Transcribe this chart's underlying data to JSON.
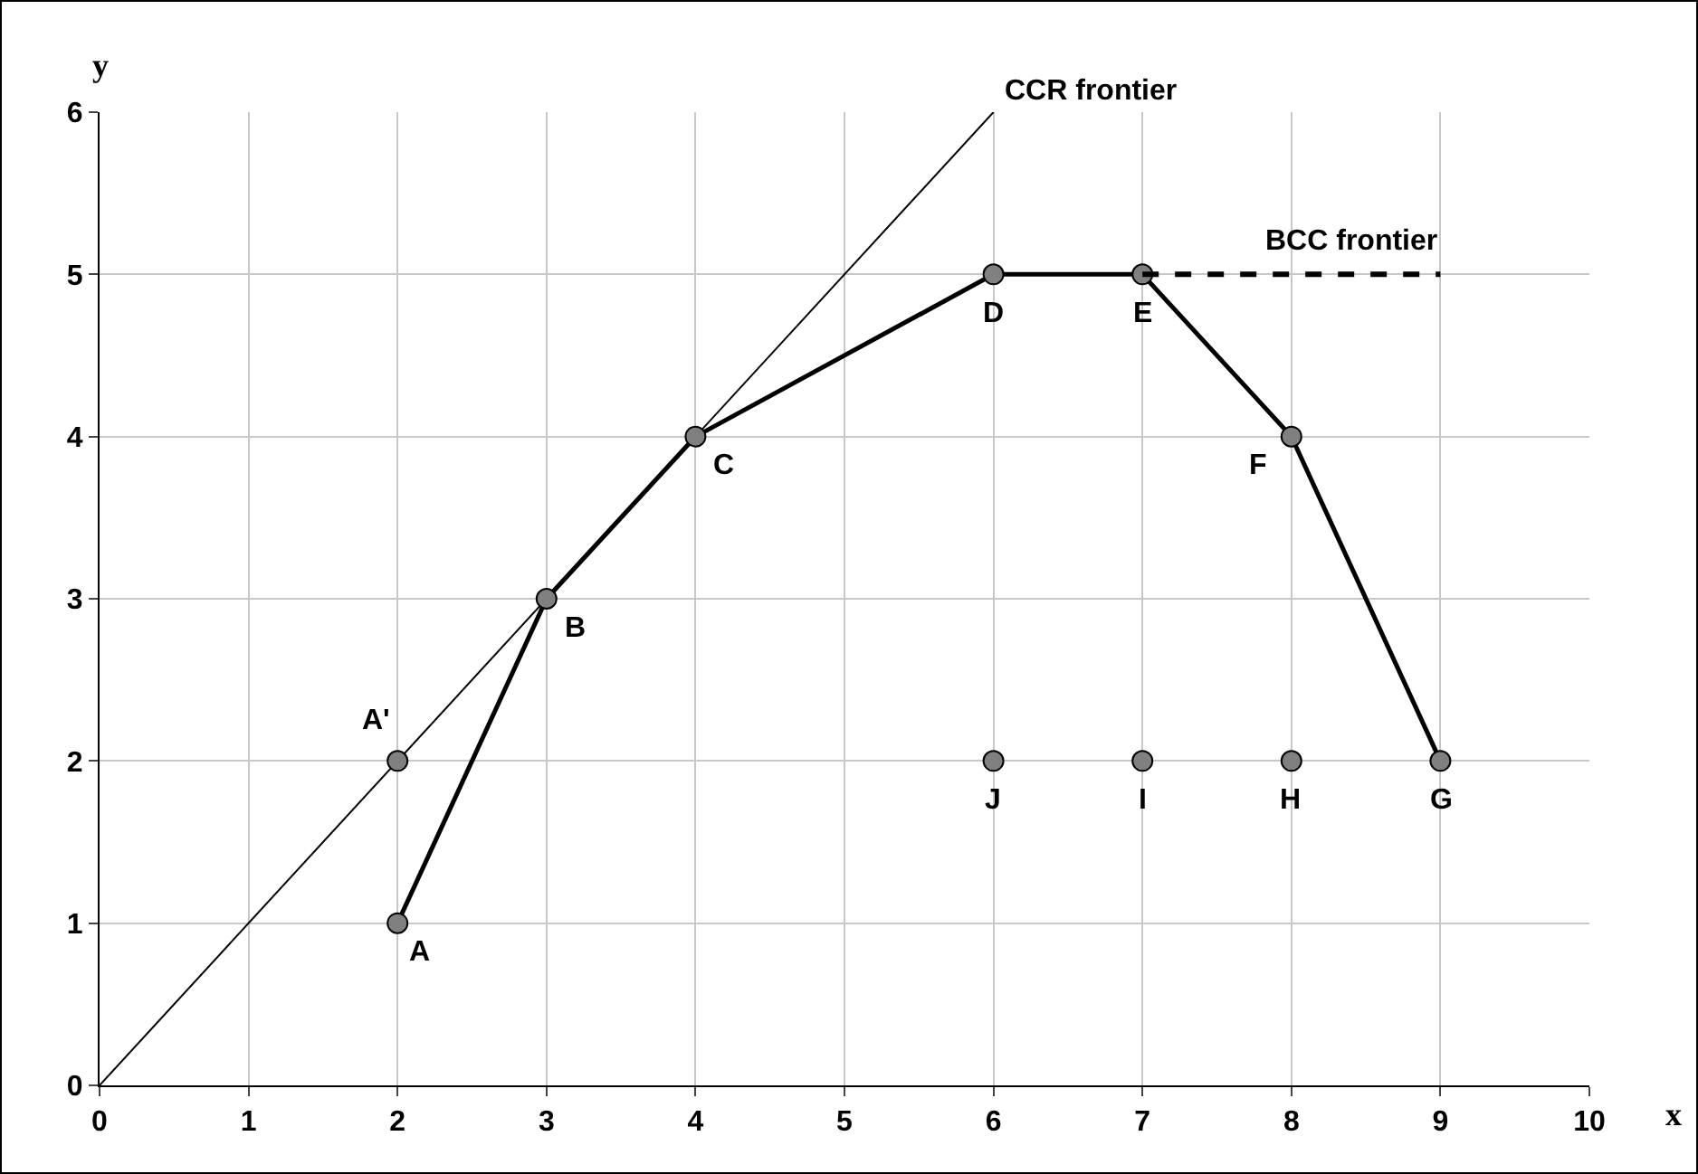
{
  "chart_data": {
    "type": "line",
    "xlabel": "x",
    "ylabel": "y",
    "xlim": [
      0,
      10
    ],
    "xticks": [
      0,
      1,
      2,
      3,
      4,
      5,
      6,
      7,
      8,
      9,
      10
    ],
    "ylim": [
      0,
      6
    ],
    "yticks": [
      0,
      1,
      2,
      3,
      4,
      5,
      6
    ],
    "grid": true,
    "series": [
      {
        "color": "#000000",
        "marker": "none",
        "line_style": "solid",
        "x": [
          0,
          6
        ],
        "values": [
          0,
          6
        ]
      },
      {
        "color": "#000000",
        "marker": "circle",
        "line_style": "solid",
        "x": [
          2,
          3,
          4,
          6,
          7,
          8,
          9
        ],
        "values": [
          1,
          3,
          4,
          5,
          5,
          4,
          2
        ]
      },
      {
        "color": "#000000",
        "marker": "none",
        "line_style": "dashed",
        "x": [
          7,
          9
        ],
        "values": [
          5,
          5
        ]
      },
      {
        "type": "scatter",
        "color": "#808080",
        "marker": "circle",
        "x": [
          2,
          6,
          7,
          8
        ],
        "values": [
          2,
          2,
          2,
          2
        ]
      }
    ],
    "annotations": [
      {
        "text": "CCR frontier",
        "x": 6,
        "y": 6
      },
      {
        "text": "BCC frontier",
        "x": 9,
        "y": 5
      },
      {
        "text": "A",
        "x": 2,
        "y": 1
      },
      {
        "text": "A'",
        "x": 2,
        "y": 2
      },
      {
        "text": "B",
        "x": 3,
        "y": 3
      },
      {
        "text": "C",
        "x": 4,
        "y": 4
      },
      {
        "text": "D",
        "x": 6,
        "y": 5
      },
      {
        "text": "E",
        "x": 7,
        "y": 5
      },
      {
        "text": "F",
        "x": 8,
        "y": 4
      },
      {
        "text": "G",
        "x": 9,
        "y": 2
      },
      {
        "text": "H",
        "x": 8,
        "y": 2
      },
      {
        "text": "I",
        "x": 7,
        "y": 2
      },
      {
        "text": "J",
        "x": 6,
        "y": 2
      }
    ]
  }
}
